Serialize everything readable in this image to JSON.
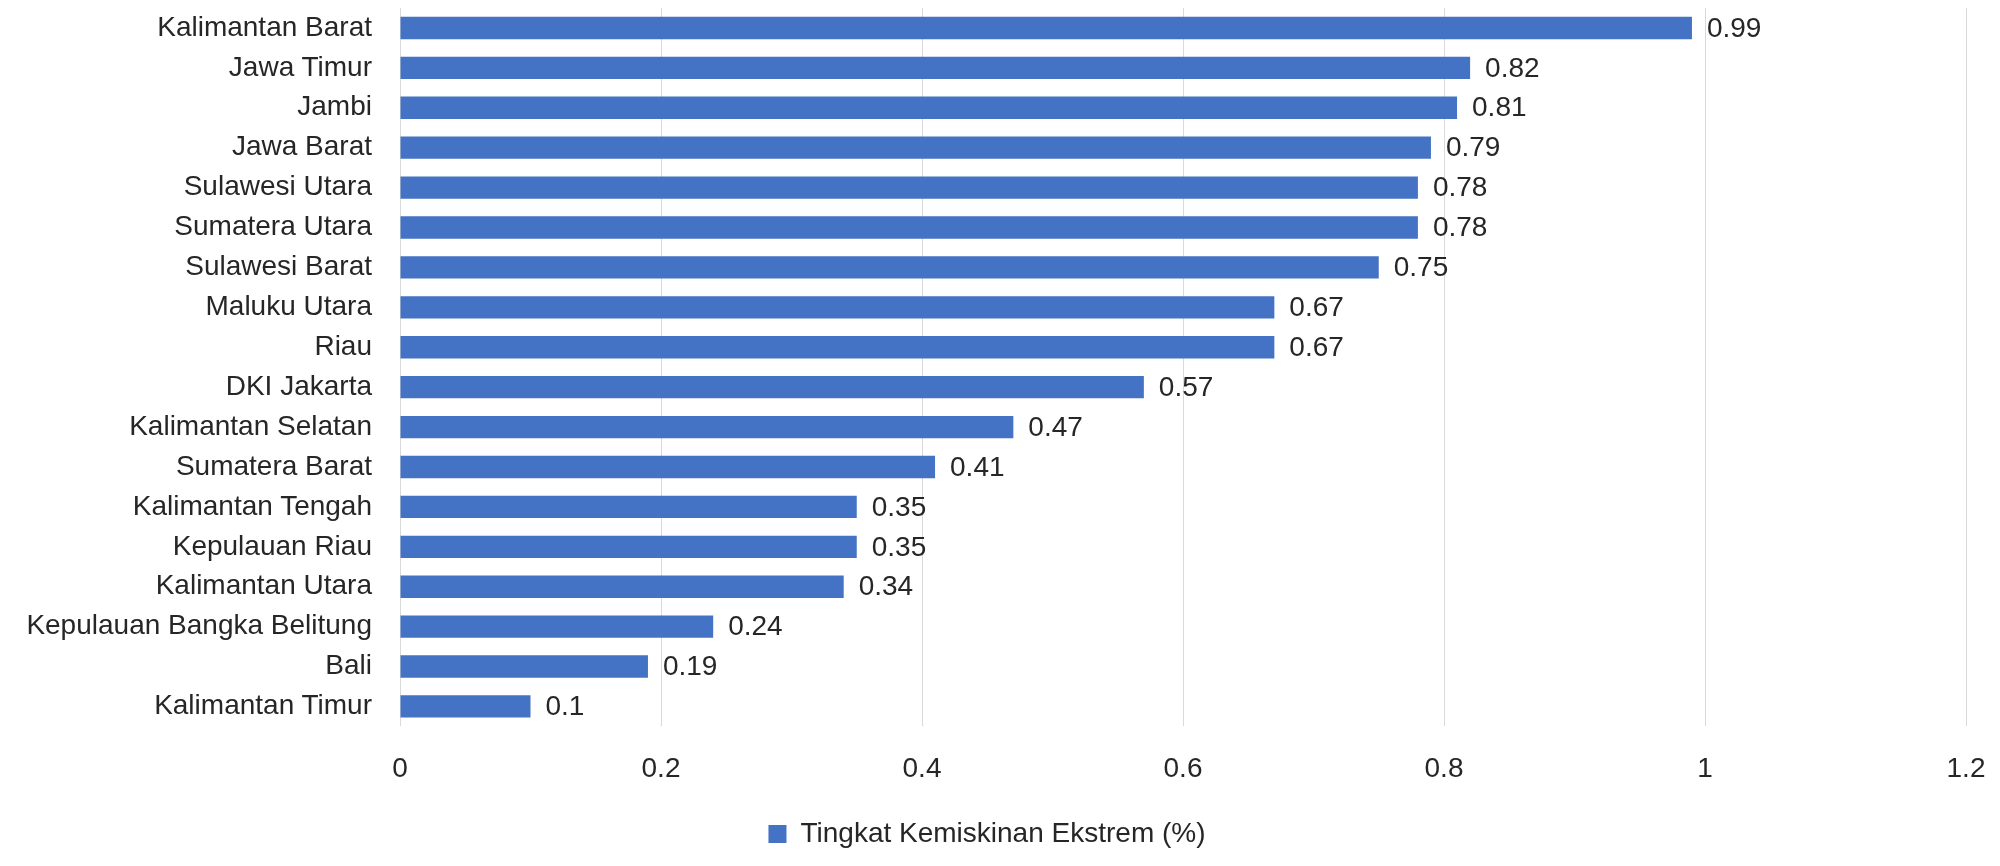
{
  "chart_data": {
    "type": "bar",
    "orientation": "horizontal",
    "categories": [
      "Kalimantan Barat",
      "Jawa Timur",
      "Jambi",
      "Jawa Barat",
      "Sulawesi Utara",
      "Sumatera Utara",
      "Sulawesi Barat",
      "Maluku Utara",
      "Riau",
      "DKI Jakarta",
      "Kalimantan Selatan",
      "Sumatera Barat",
      "Kalimantan Tengah",
      "Kepulauan Riau",
      "Kalimantan Utara",
      "Kepulauan Bangka Belitung",
      "Bali",
      "Kalimantan Timur"
    ],
    "series": [
      {
        "name": "Tingkat Kemiskinan Ekstrem (%)",
        "color": "#4472c4",
        "values": [
          0.99,
          0.82,
          0.81,
          0.79,
          0.78,
          0.78,
          0.75,
          0.67,
          0.67,
          0.57,
          0.47,
          0.41,
          0.35,
          0.35,
          0.34,
          0.24,
          0.19,
          0.1
        ]
      }
    ],
    "xlim": [
      0,
      1.2
    ],
    "xticks": [
      0,
      0.2,
      0.4,
      0.6,
      0.8,
      1,
      1.2
    ],
    "grid": "x",
    "legend": "bottom",
    "data_labels": true
  }
}
